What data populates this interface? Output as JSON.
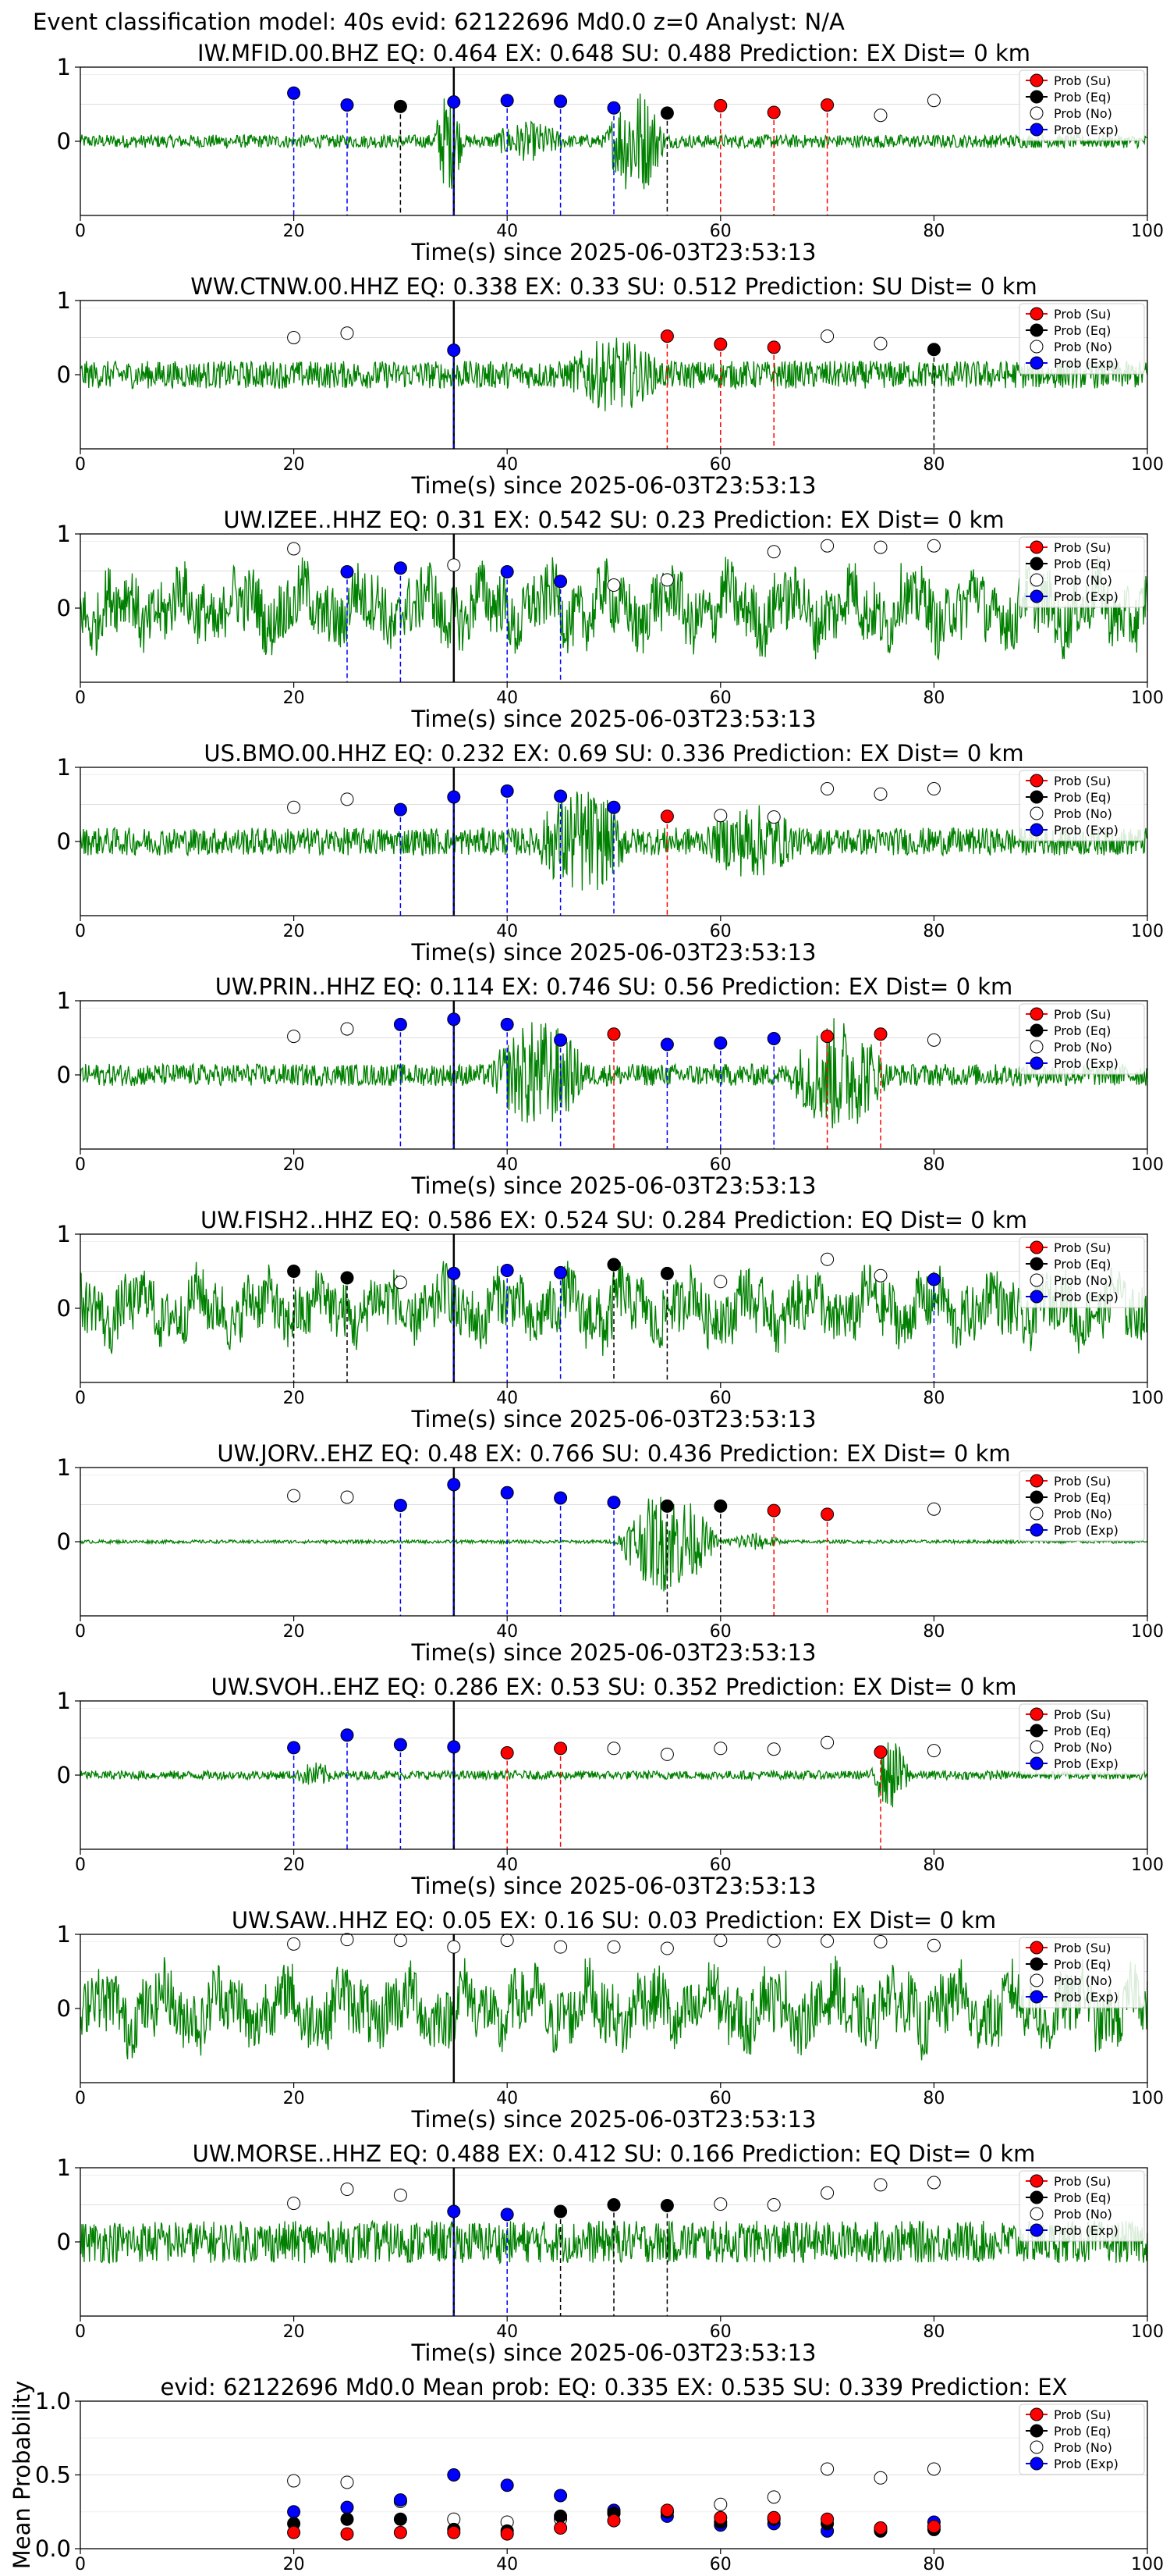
{
  "suptitle": "Event classification model: 40s evid: 62122696 Md0.0 z=0 Analyst: N/A",
  "legend_labels": [
    "Prob (Su)",
    "Prob (Eq)",
    "Prob (No)",
    "Prob (Exp)"
  ],
  "colors": {
    "waveform": "#008000",
    "su": "#ff0000",
    "eq": "#000000",
    "no": "#ffffff",
    "exp": "#0000ff"
  },
  "chart_data": [
    {
      "type": "line",
      "station": "IW.MFID.00.BHZ",
      "title": "IW.MFID.00.BHZ   EQ: 0.464   EX: 0.648   SU: 0.488   Prediction: EX    Dist= 0 km",
      "xlabel": "Time(s) since 2025-06-03T23:53:13",
      "ylabel": "",
      "xlim": [
        0,
        100
      ],
      "ylim": [
        -1,
        1
      ],
      "xticks": [
        0,
        20,
        40,
        60,
        80,
        100
      ],
      "yticks": [
        "1",
        "0"
      ],
      "waveform": {
        "amplitude": 0.12,
        "bursts": [
          [
            33,
            36,
            0.85
          ],
          [
            49,
            55,
            0.95
          ],
          [
            38,
            46,
            0.3
          ]
        ]
      },
      "probabilities": [
        {
          "t": 20,
          "class": "exp",
          "p": 0.65
        },
        {
          "t": 25,
          "class": "exp",
          "p": 0.49
        },
        {
          "t": 30,
          "class": "eq",
          "p": 0.47
        },
        {
          "t": 35,
          "class": "exp",
          "p": 0.53
        },
        {
          "t": 40,
          "class": "exp",
          "p": 0.55
        },
        {
          "t": 45,
          "class": "exp",
          "p": 0.54
        },
        {
          "t": 50,
          "class": "exp",
          "p": 0.45
        },
        {
          "t": 55,
          "class": "eq",
          "p": 0.38
        },
        {
          "t": 60,
          "class": "su",
          "p": 0.48
        },
        {
          "t": 65,
          "class": "su",
          "p": 0.39
        },
        {
          "t": 70,
          "class": "su",
          "p": 0.49
        },
        {
          "t": 75,
          "class": "no",
          "p": 0.35
        },
        {
          "t": 80,
          "class": "no",
          "p": 0.55
        }
      ]
    },
    {
      "type": "line",
      "station": "WW.CTNW.00.HHZ",
      "title": "WW.CTNW.00.HHZ   EQ: 0.338   EX: 0.33   SU: 0.512   Prediction: SU    Dist= 0 km",
      "xlabel": "Time(s) since 2025-06-03T23:53:13",
      "ylabel": "",
      "xlim": [
        0,
        100
      ],
      "ylim": [
        -1,
        1
      ],
      "xticks": [
        0,
        20,
        40,
        60,
        80,
        100
      ],
      "yticks": [
        "1",
        "0"
      ],
      "waveform": {
        "amplitude": 0.25,
        "bursts": [
          [
            45,
            55,
            0.55
          ]
        ]
      },
      "probabilities": [
        {
          "t": 20,
          "class": "no",
          "p": 0.5
        },
        {
          "t": 25,
          "class": "no",
          "p": 0.56
        },
        {
          "t": 35,
          "class": "exp",
          "p": 0.33
        },
        {
          "t": 55,
          "class": "su",
          "p": 0.52
        },
        {
          "t": 60,
          "class": "su",
          "p": 0.41
        },
        {
          "t": 65,
          "class": "su",
          "p": 0.37
        },
        {
          "t": 70,
          "class": "no",
          "p": 0.52
        },
        {
          "t": 75,
          "class": "no",
          "p": 0.42
        },
        {
          "t": 80,
          "class": "eq",
          "p": 0.34
        }
      ]
    },
    {
      "type": "line",
      "station": "UW.IZEE..HHZ",
      "title": "UW.IZEE..HHZ   EQ: 0.31   EX: 0.542   SU: 0.23   Prediction: EX    Dist= 0 km",
      "xlabel": "Time(s) since 2025-06-03T23:53:13",
      "ylabel": "",
      "xlim": [
        0,
        100
      ],
      "ylim": [
        -1,
        1
      ],
      "xticks": [
        0,
        20,
        40,
        60,
        80,
        100
      ],
      "yticks": [
        "1",
        "0"
      ],
      "waveform": {
        "amplitude": 0.55,
        "bursts": [
          [
            28,
            40,
            0.3
          ]
        ]
      },
      "probabilities": [
        {
          "t": 20,
          "class": "no",
          "p": 0.8
        },
        {
          "t": 25,
          "class": "exp",
          "p": 0.49
        },
        {
          "t": 30,
          "class": "exp",
          "p": 0.54
        },
        {
          "t": 35,
          "class": "no",
          "p": 0.58
        },
        {
          "t": 40,
          "class": "exp",
          "p": 0.49
        },
        {
          "t": 45,
          "class": "exp",
          "p": 0.36
        },
        {
          "t": 50,
          "class": "no",
          "p": 0.31
        },
        {
          "t": 55,
          "class": "no",
          "p": 0.38
        },
        {
          "t": 65,
          "class": "no",
          "p": 0.76
        },
        {
          "t": 70,
          "class": "no",
          "p": 0.84
        },
        {
          "t": 75,
          "class": "no",
          "p": 0.82
        },
        {
          "t": 80,
          "class": "no",
          "p": 0.84
        }
      ]
    },
    {
      "type": "line",
      "station": "US.BMO.00.HHZ",
      "title": "US.BMO.00.HHZ   EQ: 0.232   EX: 0.69   SU: 0.336   Prediction: EX    Dist= 0 km",
      "xlabel": "Time(s) since 2025-06-03T23:53:13",
      "ylabel": "",
      "xlim": [
        0,
        100
      ],
      "ylim": [
        -1,
        1
      ],
      "xticks": [
        0,
        20,
        40,
        60,
        80,
        100
      ],
      "yticks": [
        "1",
        "0"
      ],
      "waveform": {
        "amplitude": 0.25,
        "bursts": [
          [
            42,
            52,
            0.85
          ],
          [
            58,
            68,
            0.55
          ]
        ]
      },
      "probabilities": [
        {
          "t": 20,
          "class": "no",
          "p": 0.46
        },
        {
          "t": 25,
          "class": "no",
          "p": 0.57
        },
        {
          "t": 30,
          "class": "exp",
          "p": 0.43
        },
        {
          "t": 35,
          "class": "exp",
          "p": 0.6
        },
        {
          "t": 40,
          "class": "exp",
          "p": 0.68
        },
        {
          "t": 45,
          "class": "exp",
          "p": 0.61
        },
        {
          "t": 50,
          "class": "exp",
          "p": 0.46
        },
        {
          "t": 55,
          "class": "su",
          "p": 0.34
        },
        {
          "t": 60,
          "class": "no",
          "p": 0.35
        },
        {
          "t": 65,
          "class": "no",
          "p": 0.33
        },
        {
          "t": 70,
          "class": "no",
          "p": 0.71
        },
        {
          "t": 75,
          "class": "no",
          "p": 0.64
        },
        {
          "t": 80,
          "class": "no",
          "p": 0.71
        }
      ]
    },
    {
      "type": "line",
      "station": "UW.PRIN..HHZ",
      "title": "UW.PRIN..HHZ   EQ: 0.114   EX: 0.746   SU: 0.56   Prediction: EX    Dist= 0 km",
      "xlabel": "Time(s) since 2025-06-03T23:53:13",
      "ylabel": "",
      "xlim": [
        0,
        100
      ],
      "ylim": [
        -1,
        1
      ],
      "xticks": [
        0,
        20,
        40,
        60,
        80,
        100
      ],
      "yticks": [
        "1",
        "0"
      ],
      "waveform": {
        "amplitude": 0.2,
        "bursts": [
          [
            38,
            48,
            0.9
          ],
          [
            66,
            76,
            0.95
          ]
        ]
      },
      "probabilities": [
        {
          "t": 20,
          "class": "no",
          "p": 0.52
        },
        {
          "t": 25,
          "class": "no",
          "p": 0.62
        },
        {
          "t": 30,
          "class": "exp",
          "p": 0.68
        },
        {
          "t": 35,
          "class": "exp",
          "p": 0.75
        },
        {
          "t": 40,
          "class": "exp",
          "p": 0.68
        },
        {
          "t": 45,
          "class": "exp",
          "p": 0.47
        },
        {
          "t": 50,
          "class": "su",
          "p": 0.55
        },
        {
          "t": 55,
          "class": "exp",
          "p": 0.41
        },
        {
          "t": 60,
          "class": "exp",
          "p": 0.43
        },
        {
          "t": 65,
          "class": "exp",
          "p": 0.49
        },
        {
          "t": 70,
          "class": "su",
          "p": 0.52
        },
        {
          "t": 75,
          "class": "su",
          "p": 0.55
        },
        {
          "t": 80,
          "class": "no",
          "p": 0.47
        }
      ]
    },
    {
      "type": "line",
      "station": "UW.FISH2..HHZ",
      "title": "UW.FISH2..HHZ   EQ: 0.586   EX: 0.524   SU: 0.284   Prediction: EQ    Dist= 0 km",
      "xlabel": "Time(s) since 2025-06-03T23:53:13",
      "ylabel": "",
      "xlim": [
        0,
        100
      ],
      "ylim": [
        -1,
        1
      ],
      "xticks": [
        0,
        20,
        40,
        60,
        80,
        100
      ],
      "yticks": [
        "1",
        "0"
      ],
      "waveform": {
        "amplitude": 0.5,
        "bursts": [
          [
            44,
            54,
            0.35
          ]
        ]
      },
      "probabilities": [
        {
          "t": 20,
          "class": "eq",
          "p": 0.5
        },
        {
          "t": 25,
          "class": "eq",
          "p": 0.41
        },
        {
          "t": 30,
          "class": "no",
          "p": 0.35
        },
        {
          "t": 35,
          "class": "exp",
          "p": 0.47
        },
        {
          "t": 40,
          "class": "exp",
          "p": 0.51
        },
        {
          "t": 45,
          "class": "exp",
          "p": 0.48
        },
        {
          "t": 50,
          "class": "eq",
          "p": 0.59
        },
        {
          "t": 55,
          "class": "eq",
          "p": 0.47
        },
        {
          "t": 60,
          "class": "no",
          "p": 0.36
        },
        {
          "t": 70,
          "class": "no",
          "p": 0.66
        },
        {
          "t": 75,
          "class": "no",
          "p": 0.44
        },
        {
          "t": 80,
          "class": "exp",
          "p": 0.39
        }
      ]
    },
    {
      "type": "line",
      "station": "UW.JORV..EHZ",
      "title": "UW.JORV..EHZ   EQ: 0.48   EX: 0.766   SU: 0.436   Prediction: EX    Dist= 0 km",
      "xlabel": "Time(s) since 2025-06-03T23:53:13",
      "ylabel": "",
      "xlim": [
        0,
        100
      ],
      "ylim": [
        -1,
        1
      ],
      "xticks": [
        0,
        20,
        40,
        60,
        80,
        100
      ],
      "yticks": [
        "1",
        "0"
      ],
      "waveform": {
        "amplitude": 0.03,
        "bursts": [
          [
            50,
            60,
            0.9
          ],
          [
            60,
            66,
            0.15
          ]
        ]
      },
      "probabilities": [
        {
          "t": 20,
          "class": "no",
          "p": 0.62
        },
        {
          "t": 25,
          "class": "no",
          "p": 0.6
        },
        {
          "t": 30,
          "class": "exp",
          "p": 0.49
        },
        {
          "t": 35,
          "class": "exp",
          "p": 0.77
        },
        {
          "t": 40,
          "class": "exp",
          "p": 0.66
        },
        {
          "t": 45,
          "class": "exp",
          "p": 0.59
        },
        {
          "t": 50,
          "class": "exp",
          "p": 0.53
        },
        {
          "t": 55,
          "class": "eq",
          "p": 0.48
        },
        {
          "t": 60,
          "class": "eq",
          "p": 0.48
        },
        {
          "t": 65,
          "class": "su",
          "p": 0.42
        },
        {
          "t": 70,
          "class": "su",
          "p": 0.37
        },
        {
          "t": 80,
          "class": "no",
          "p": 0.44
        }
      ]
    },
    {
      "type": "line",
      "station": "UW.SVOH..EHZ",
      "title": "UW.SVOH..EHZ   EQ: 0.286   EX: 0.53   SU: 0.352   Prediction: EX    Dist= 0 km",
      "xlabel": "Time(s) since 2025-06-03T23:53:13",
      "ylabel": "",
      "xlim": [
        0,
        100
      ],
      "ylim": [
        -1,
        1
      ],
      "xticks": [
        0,
        20,
        40,
        60,
        80,
        100
      ],
      "yticks": [
        "1",
        "0"
      ],
      "waveform": {
        "amplitude": 0.08,
        "bursts": [
          [
            74,
            78,
            0.6
          ],
          [
            20,
            24,
            0.2
          ]
        ]
      },
      "probabilities": [
        {
          "t": 20,
          "class": "exp",
          "p": 0.37
        },
        {
          "t": 25,
          "class": "exp",
          "p": 0.54
        },
        {
          "t": 30,
          "class": "exp",
          "p": 0.41
        },
        {
          "t": 35,
          "class": "exp",
          "p": 0.38
        },
        {
          "t": 40,
          "class": "su",
          "p": 0.3
        },
        {
          "t": 45,
          "class": "su",
          "p": 0.36
        },
        {
          "t": 50,
          "class": "no",
          "p": 0.36
        },
        {
          "t": 55,
          "class": "no",
          "p": 0.28
        },
        {
          "t": 60,
          "class": "no",
          "p": 0.36
        },
        {
          "t": 65,
          "class": "no",
          "p": 0.35
        },
        {
          "t": 70,
          "class": "no",
          "p": 0.44
        },
        {
          "t": 75,
          "class": "su",
          "p": 0.31
        },
        {
          "t": 80,
          "class": "no",
          "p": 0.33
        }
      ]
    },
    {
      "type": "line",
      "station": "UW.SAW..HHZ",
      "title": "UW.SAW..HHZ   EQ: 0.05   EX: 0.16   SU: 0.03   Prediction: EX    Dist= 0 km",
      "xlabel": "Time(s) since 2025-06-03T23:53:13",
      "ylabel": "",
      "xlim": [
        0,
        100
      ],
      "ylim": [
        -1,
        1
      ],
      "xticks": [
        0,
        20,
        40,
        60,
        80,
        100
      ],
      "yticks": [
        "1",
        "0"
      ],
      "waveform": {
        "amplitude": 0.55,
        "bursts": []
      },
      "probabilities": [
        {
          "t": 20,
          "class": "no",
          "p": 0.87
        },
        {
          "t": 25,
          "class": "no",
          "p": 0.93
        },
        {
          "t": 30,
          "class": "no",
          "p": 0.92
        },
        {
          "t": 35,
          "class": "no",
          "p": 0.83
        },
        {
          "t": 40,
          "class": "no",
          "p": 0.92
        },
        {
          "t": 45,
          "class": "no",
          "p": 0.83
        },
        {
          "t": 50,
          "class": "no",
          "p": 0.83
        },
        {
          "t": 55,
          "class": "no",
          "p": 0.81
        },
        {
          "t": 60,
          "class": "no",
          "p": 0.92
        },
        {
          "t": 65,
          "class": "no",
          "p": 0.91
        },
        {
          "t": 70,
          "class": "no",
          "p": 0.91
        },
        {
          "t": 75,
          "class": "no",
          "p": 0.9
        },
        {
          "t": 80,
          "class": "no",
          "p": 0.85
        }
      ]
    },
    {
      "type": "line",
      "station": "UW.MORSE..HHZ",
      "title": "UW.MORSE..HHZ   EQ: 0.488   EX: 0.412   SU: 0.166   Prediction: EQ    Dist= 0 km",
      "xlabel": "Time(s) since 2025-06-03T23:53:13",
      "ylabel": "",
      "xlim": [
        0,
        100
      ],
      "ylim": [
        -1,
        1
      ],
      "xticks": [
        0,
        20,
        40,
        60,
        80,
        100
      ],
      "yticks": [
        "1",
        "0"
      ],
      "waveform": {
        "amplitude": 0.38,
        "bursts": [
          [
            44,
            52,
            0.2
          ]
        ]
      },
      "probabilities": [
        {
          "t": 20,
          "class": "no",
          "p": 0.52
        },
        {
          "t": 25,
          "class": "no",
          "p": 0.71
        },
        {
          "t": 30,
          "class": "no",
          "p": 0.63
        },
        {
          "t": 35,
          "class": "exp",
          "p": 0.41
        },
        {
          "t": 40,
          "class": "exp",
          "p": 0.37
        },
        {
          "t": 45,
          "class": "eq",
          "p": 0.41
        },
        {
          "t": 50,
          "class": "eq",
          "p": 0.5
        },
        {
          "t": 55,
          "class": "eq",
          "p": 0.49
        },
        {
          "t": 60,
          "class": "no",
          "p": 0.51
        },
        {
          "t": 65,
          "class": "no",
          "p": 0.5
        },
        {
          "t": 70,
          "class": "no",
          "p": 0.66
        },
        {
          "t": 75,
          "class": "no",
          "p": 0.77
        },
        {
          "t": 80,
          "class": "no",
          "p": 0.8
        }
      ]
    },
    {
      "type": "scatter",
      "station": "mean",
      "title": "evid: 62122696  Md0.0   Mean prob:   EQ: 0.335  EX: 0.535  SU: 0.339   Prediction: EX",
      "xlabel": "",
      "ylabel": "Mean Probability",
      "xlim": [
        0,
        100
      ],
      "ylim": [
        0,
        1.0
      ],
      "xticks": [
        0,
        20,
        40,
        60,
        80,
        100
      ],
      "yticks": [
        "1.0",
        "0.5",
        "0.0"
      ],
      "x": [
        20,
        25,
        30,
        35,
        40,
        45,
        50,
        55,
        60,
        65,
        70,
        75,
        80
      ],
      "series": [
        {
          "name": "Prob (Su)",
          "class": "su",
          "values": [
            0.11,
            0.1,
            0.11,
            0.11,
            0.1,
            0.14,
            0.19,
            0.26,
            0.21,
            0.21,
            0.2,
            0.14,
            0.15
          ]
        },
        {
          "name": "Prob (Eq)",
          "class": "eq",
          "values": [
            0.17,
            0.2,
            0.2,
            0.13,
            0.12,
            0.22,
            0.24,
            0.25,
            0.18,
            0.2,
            0.17,
            0.12,
            0.13
          ]
        },
        {
          "name": "Prob (No)",
          "class": "no",
          "values": [
            0.46,
            0.45,
            0.32,
            0.2,
            0.18,
            0.2,
            0.24,
            0.25,
            0.3,
            0.35,
            0.54,
            0.48,
            0.54
          ]
        },
        {
          "name": "Prob (Exp)",
          "class": "exp",
          "values": [
            0.25,
            0.28,
            0.33,
            0.5,
            0.43,
            0.36,
            0.26,
            0.22,
            0.16,
            0.17,
            0.12,
            0.13,
            0.18
          ]
        }
      ]
    }
  ]
}
